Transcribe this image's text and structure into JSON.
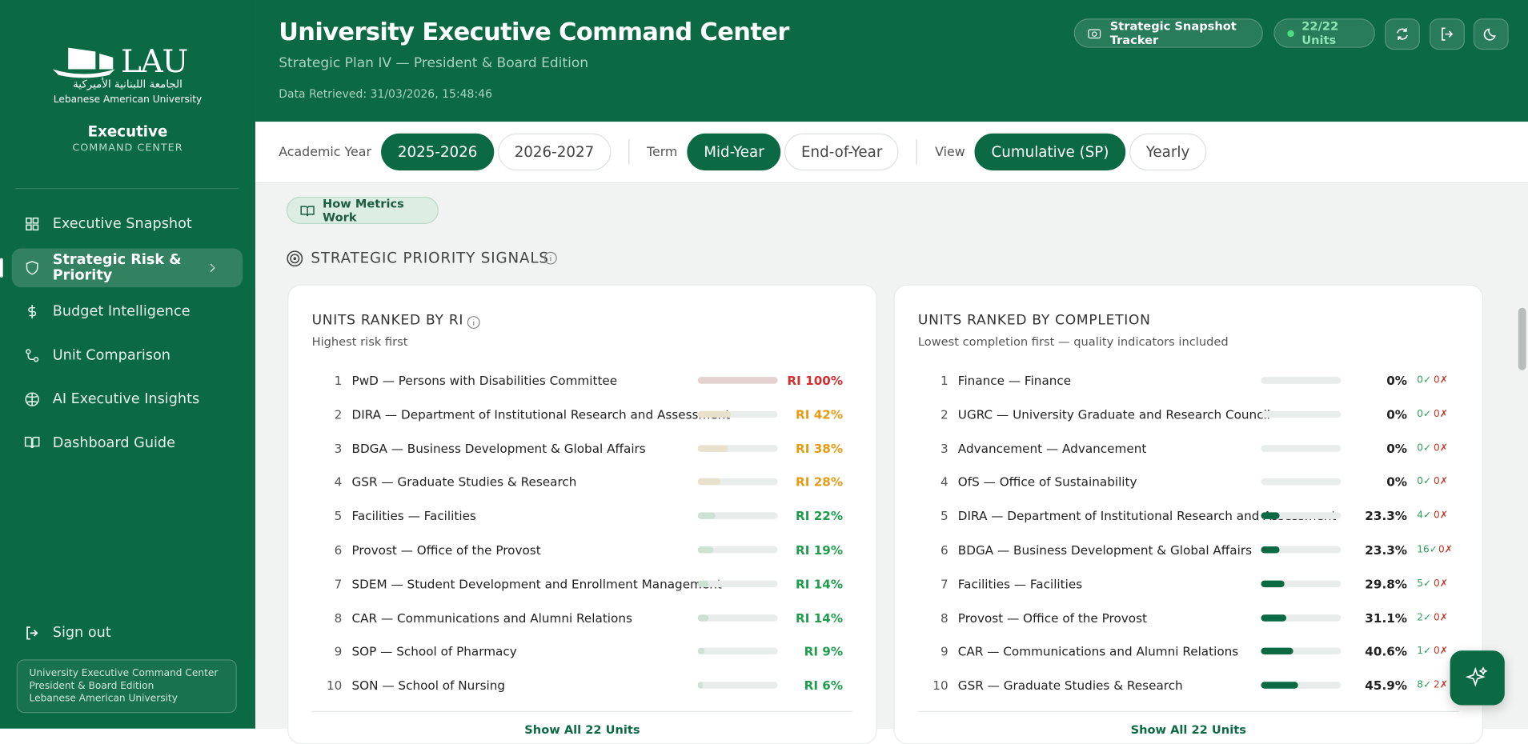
{
  "sidebar": {
    "logo": "LAU",
    "logo_arabic": "الجامعة اللبنانية الأميركية",
    "logo_subtitle": "Lebanese American University",
    "app_title": "Executive",
    "app_subtitle": "COMMAND CENTER",
    "nav": [
      "Executive Snapshot",
      "Strategic Risk & Priority",
      "Budget Intelligence",
      "Unit Comparison",
      "AI Executive Insights",
      "Dashboard Guide"
    ],
    "active_nav": 1,
    "sign_out": "Sign out",
    "footer": [
      "University Executive Command Center",
      "President & Board Edition",
      "Lebanese American University"
    ]
  },
  "header": {
    "title": "University Executive Command Center",
    "subtitle": "Strategic Plan IV — President & Board Edition",
    "retrieved": "Data Retrieved: 31/03/2026, 15:48:46",
    "tracker_button": "Strategic Snapshot Tracker",
    "units_badge": "22/22 Units"
  },
  "filters": [
    {
      "label": "Academic Year",
      "options": [
        "2025-2026",
        "2026-2027"
      ],
      "selected": 0
    },
    {
      "label": "Term",
      "options": [
        "Mid-Year",
        "End-of-Year"
      ],
      "selected": 0
    },
    {
      "label": "View",
      "options": [
        "Cumulative (SP)",
        "Yearly"
      ],
      "selected": 0
    }
  ],
  "help_button": "How Metrics Work",
  "section_title": "STRATEGIC PRIORITY SIGNALS",
  "ri_card": {
    "title": "UNITS RANKED BY RI",
    "subtitle": "Highest risk first",
    "ranks": [
      1,
      2,
      3,
      4,
      5,
      6,
      7,
      8,
      9,
      10
    ],
    "units": [
      "PwD — Persons with Disabilities Committee",
      "DIRA — Department of Institutional Research and Assessment",
      "BDGA — Business Development & Global Affairs",
      "GSR — Graduate Studies & Research",
      "Facilities — Facilities",
      "Provost — Office of the Provost",
      "SDEM — Student Development and Enrollment Management",
      "CAR — Communications and Alumni Relations",
      "SOP — School of Pharmacy",
      "SON — School of Nursing"
    ],
    "values": [
      100,
      42,
      38,
      28,
      22,
      19,
      14,
      14,
      9,
      6
    ],
    "value_labels": [
      "RI 100%",
      "RI 42%",
      "RI 38%",
      "RI 28%",
      "RI 22%",
      "RI 19%",
      "RI 14%",
      "RI 14%",
      "RI 9%",
      "RI 6%"
    ],
    "colors": [
      "#d32f2f",
      "#e89b12",
      "#e89b12",
      "#e89b12",
      "#1f9d4c",
      "#1f9d4c",
      "#1f9d4c",
      "#1f9d4c",
      "#1f9d4c",
      "#1f9d4c"
    ],
    "footer": "Show All 22 Units"
  },
  "completion_card": {
    "title": "UNITS RANKED BY COMPLETION",
    "subtitle": "Lowest completion first — quality indicators included",
    "ranks": [
      1,
      2,
      3,
      4,
      5,
      6,
      7,
      8,
      9,
      10
    ],
    "units": [
      "Finance — Finance",
      "UGRC — University Graduate and Research Council",
      "Advancement — Advancement",
      "OfS — Office of Sustainability",
      "DIRA — Department of Institutional Research and Assessment",
      "BDGA — Business Development & Global Affairs",
      "Facilities — Facilities",
      "Provost — Office of the Provost",
      "CAR — Communications and Alumni Relations",
      "GSR — Graduate Studies & Research"
    ],
    "values": [
      0,
      0,
      0,
      0,
      23.3,
      23.3,
      29.8,
      31.1,
      40.6,
      45.9
    ],
    "value_labels": [
      "0%",
      "0%",
      "0%",
      "0%",
      "23.3%",
      "23.3%",
      "29.8%",
      "31.1%",
      "40.6%",
      "45.9%"
    ],
    "checks": [
      "0✓",
      "0✓",
      "0✓",
      "0✓",
      "4✓",
      "16✓",
      "5✓",
      "2✓",
      "1✓",
      "8✓"
    ],
    "crosses": [
      "0✗",
      "0✗",
      "0✗",
      "0✗",
      "0✗",
      "0✗",
      "0✗",
      "0✗",
      "0✗",
      "2✗"
    ],
    "footer": "Show All 22 Units"
  }
}
